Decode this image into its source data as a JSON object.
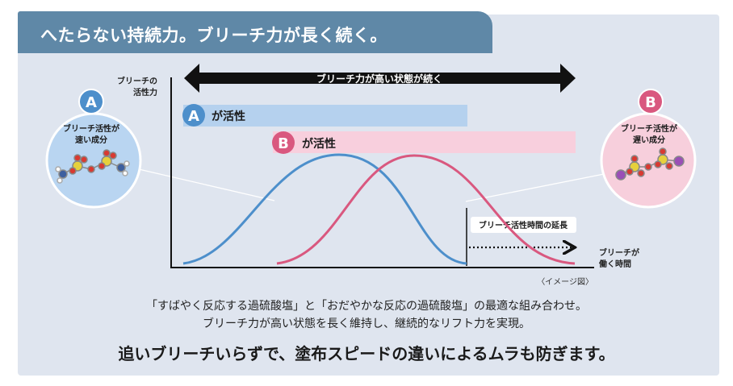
{
  "header": {
    "title": "へたらない持続力。ブリーチ力が長く続く。"
  },
  "diagram": {
    "y_axis_label_line1": "ブリーチの",
    "y_axis_label_line2": "活性力",
    "x_axis_label_line1": "ブリーチが",
    "x_axis_label_line2": "働く時間",
    "duration_arrow_label": "ブリーチ力が高い状態が続く",
    "bar_a_letter": "A",
    "bar_a_label": "が活性",
    "bar_b_letter": "B",
    "bar_b_label": "が活性",
    "extension_label": "ブリーチ活性時間の延長",
    "image_note": "〈イメージ図〉",
    "left_circle": {
      "letter": "A",
      "line1": "ブリーチ活性が",
      "line2": "速い成分"
    },
    "right_circle": {
      "letter": "B",
      "line1": "ブリーチ活性が",
      "line2": "遅い成分"
    },
    "colors": {
      "a_curve": "#4d8fcb",
      "b_curve": "#d9587f",
      "bar_a": "#b5d1ee",
      "bar_b": "#f8cfdd",
      "header": "#5f88a7",
      "panel": "#dfe5ef"
    }
  },
  "captions": {
    "line1": "「すばやく反応する過硫酸塩」と「おだやかな反応の過硫酸塩」の最適な組み合わせ。",
    "line2": "ブリーチ力が高い状態を長く維持し、継続的なリフト力を実現。",
    "line3": "追いブリーチいらずで、塗布スピードの違いによるムラも防ぎます。"
  }
}
